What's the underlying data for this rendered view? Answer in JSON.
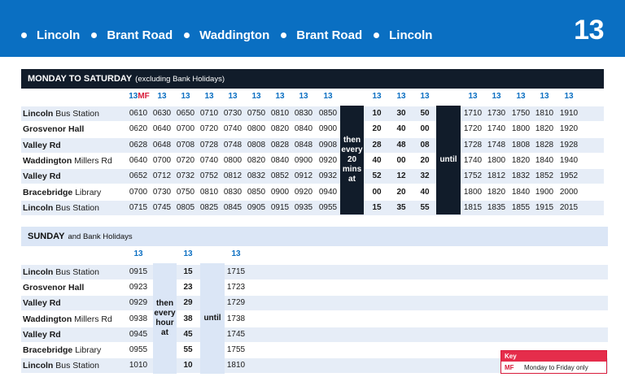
{
  "header": {
    "route_stops": [
      "Lincoln",
      "Brant Road",
      "Waddington",
      "Brant Road",
      "Lincoln"
    ],
    "route_number": "13",
    "banner_color": "#0a6fc2"
  },
  "weekday": {
    "title": "MONDAY TO SATURDAY",
    "note": "(excluding Bank Holidays)",
    "stops": [
      {
        "name": "Lincoln",
        "detail": "Bus Station"
      },
      {
        "name": "Grosvenor Hall",
        "detail": ""
      },
      {
        "name": "Valley Rd",
        "detail": ""
      },
      {
        "name": "Waddington",
        "detail": "Millers Rd"
      },
      {
        "name": "Valley Rd",
        "detail": ""
      },
      {
        "name": "Bracebridge",
        "detail": "Library"
      },
      {
        "name": "Lincoln",
        "detail": "Bus Station"
      }
    ],
    "first_route": "13",
    "first_route_code": "MF",
    "early_routes": [
      "13",
      "13",
      "13",
      "13",
      "13",
      "13",
      "13",
      "13"
    ],
    "early": [
      [
        "0610",
        "0630",
        "0650",
        "0710",
        "0730",
        "0750",
        "0810",
        "0830",
        "0850"
      ],
      [
        "0620",
        "0640",
        "0700",
        "0720",
        "0740",
        "0800",
        "0820",
        "0840",
        "0900"
      ],
      [
        "0628",
        "0648",
        "0708",
        "0728",
        "0748",
        "0808",
        "0828",
        "0848",
        "0908"
      ],
      [
        "0640",
        "0700",
        "0720",
        "0740",
        "0800",
        "0820",
        "0840",
        "0900",
        "0920"
      ],
      [
        "0652",
        "0712",
        "0732",
        "0752",
        "0812",
        "0832",
        "0852",
        "0912",
        "0932"
      ],
      [
        "0700",
        "0730",
        "0750",
        "0810",
        "0830",
        "0850",
        "0900",
        "0920",
        "0940"
      ],
      [
        "0715",
        "0745",
        "0805",
        "0825",
        "0845",
        "0905",
        "0915",
        "0935",
        "0955"
      ]
    ],
    "then_text": [
      "then",
      "every",
      "20",
      "mins",
      "at"
    ],
    "minute_routes": [
      "13",
      "13",
      "13"
    ],
    "minutes": [
      [
        "10",
        "30",
        "50"
      ],
      [
        "20",
        "40",
        "00"
      ],
      [
        "28",
        "48",
        "08"
      ],
      [
        "40",
        "00",
        "20"
      ],
      [
        "52",
        "12",
        "32"
      ],
      [
        "00",
        "20",
        "40"
      ],
      [
        "15",
        "35",
        "55"
      ]
    ],
    "until_text": "until",
    "late_routes": [
      "13",
      "13",
      "13",
      "13",
      "13"
    ],
    "late": [
      [
        "1710",
        "1730",
        "1750",
        "1810",
        "1910"
      ],
      [
        "1720",
        "1740",
        "1800",
        "1820",
        "1920"
      ],
      [
        "1728",
        "1748",
        "1808",
        "1828",
        "1928"
      ],
      [
        "1740",
        "1800",
        "1820",
        "1840",
        "1940"
      ],
      [
        "1752",
        "1812",
        "1832",
        "1852",
        "1952"
      ],
      [
        "1800",
        "1820",
        "1840",
        "1900",
        "2000"
      ],
      [
        "1815",
        "1835",
        "1855",
        "1915",
        "2015"
      ]
    ]
  },
  "sunday": {
    "title": "SUNDAY",
    "note": "and Bank Holidays",
    "stops": [
      {
        "name": "Lincoln",
        "detail": "Bus Station"
      },
      {
        "name": "Grosvenor Hall",
        "detail": ""
      },
      {
        "name": "Valley Rd",
        "detail": ""
      },
      {
        "name": "Waddington",
        "detail": "Millers Rd"
      },
      {
        "name": "Valley Rd",
        "detail": ""
      },
      {
        "name": "Bracebridge",
        "detail": "Library"
      },
      {
        "name": "Lincoln",
        "detail": "Bus Station"
      }
    ],
    "routes": [
      "13",
      "13",
      "13"
    ],
    "first": [
      "0915",
      "0923",
      "0929",
      "0938",
      "0945",
      "0955",
      "1010"
    ],
    "then_text": [
      "then",
      "every",
      "hour",
      "at"
    ],
    "minutes": [
      "15",
      "23",
      "29",
      "38",
      "45",
      "55",
      "10"
    ],
    "until_text": "until",
    "last": [
      "1715",
      "1723",
      "1729",
      "1738",
      "1745",
      "1755",
      "1810"
    ]
  },
  "key": {
    "title": "Key",
    "items": [
      {
        "code": "MF",
        "meaning": "Monday to Friday only"
      }
    ]
  }
}
